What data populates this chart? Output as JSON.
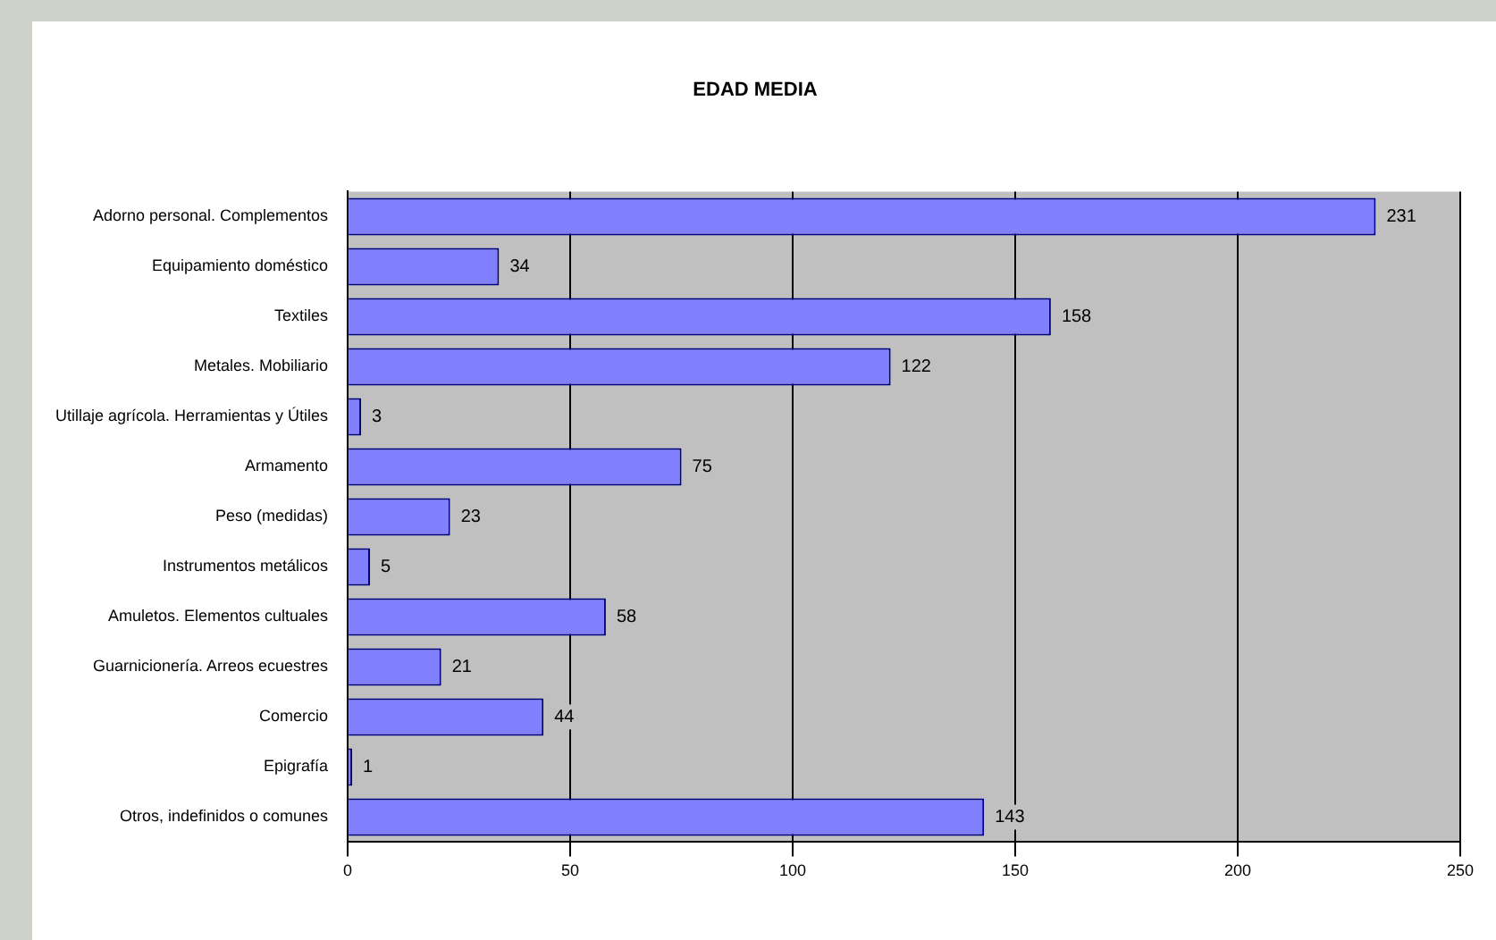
{
  "chart_data": {
    "type": "bar",
    "orientation": "horizontal",
    "title": "EDAD MEDIA",
    "categories": [
      "Adorno personal. Complementos",
      "Equipamiento doméstico",
      "Textiles",
      "Metales. Mobiliario",
      "Utillaje agrícola. Herramientas y Útiles",
      "Armamento",
      "Peso (medidas)",
      "Instrumentos metálicos",
      "Amuletos. Elementos cultuales",
      "Guarnicionería. Arreos ecuestres",
      "Comercio",
      "Epigrafía",
      "Otros, indefinidos o comunes"
    ],
    "values": [
      231,
      34,
      158,
      122,
      3,
      75,
      23,
      5,
      58,
      21,
      44,
      1,
      143
    ],
    "color": "#8080ff",
    "xlim": [
      0,
      250
    ],
    "xticks": [
      0,
      50,
      100,
      150,
      200,
      250
    ],
    "grid": "x",
    "data_labels": true,
    "legend": false
  }
}
